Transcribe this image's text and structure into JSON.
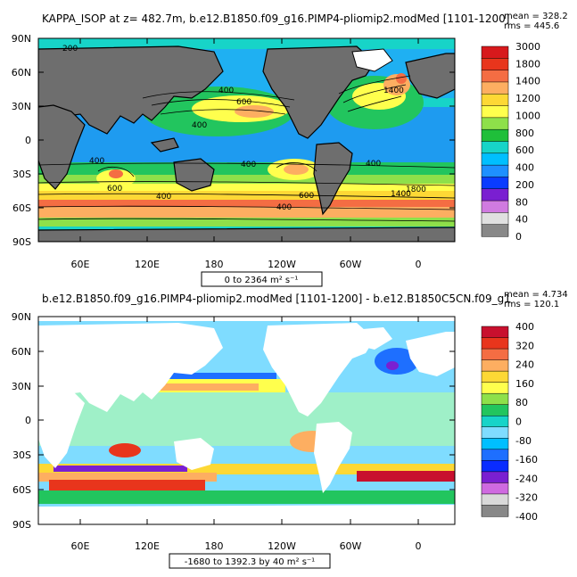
{
  "panels": [
    {
      "id": "top",
      "title": "KAPPA_ISOP at z= 482.7m, b.e12.B1850.f09_g16.PIMP4-pliomip2.modMed [1101-1200]",
      "stats": {
        "mean": "mean = 328.2",
        "rms": "rms = 445.6"
      },
      "range_label": "0 to 2364 m² s⁻¹",
      "lat_labels": [
        "90N",
        "60N",
        "30N",
        "0",
        "30S",
        "60S",
        "90S"
      ],
      "lon_labels": [
        "60E",
        "120E",
        "180",
        "120W",
        "60W",
        "0"
      ],
      "contour_labels": [
        "400",
        "400",
        "600",
        "400",
        "400",
        "400",
        "600",
        "400",
        "600",
        "400",
        "1400",
        "1400",
        "1800",
        "200"
      ],
      "colorbar": {
        "labels": [
          "3000",
          "1800",
          "1400",
          "1200",
          "1000",
          "800",
          "600",
          "400",
          "200",
          "80",
          "40",
          "0"
        ],
        "colors": [
          "#d7191c",
          "#e8351c",
          "#f46d43",
          "#fdae61",
          "#fdd835",
          "#ffff4d",
          "#8ee04a",
          "#1fbf3a",
          "#17d4c8",
          "#00bfff",
          "#1e90ff",
          "#0a3cff",
          "#7a1fd1",
          "#d07be0",
          "#e0e0e0",
          "#888888"
        ]
      }
    },
    {
      "id": "bottom",
      "title": "b.e12.B1850.f09_g16.PIMP4-pliomip2.modMed [1101-1200] - b.e12.B1850C5CN.f09_g1",
      "stats": {
        "mean": "mean = 4.734",
        "rms": "rms = 120.1"
      },
      "range_label": "-1680 to 1392.3 by 40 m² s⁻¹",
      "lat_labels": [
        "90N",
        "60N",
        "30N",
        "0",
        "30S",
        "60S",
        "90S"
      ],
      "lon_labels": [
        "60E",
        "120E",
        "180",
        "120W",
        "60W",
        "0"
      ],
      "colorbar": {
        "labels": [
          "400",
          "320",
          "240",
          "160",
          "80",
          "0",
          "-80",
          "-160",
          "-240",
          "-320",
          "-400"
        ],
        "colors": [
          "#c8102e",
          "#e8351c",
          "#f46d43",
          "#fdae61",
          "#fdd835",
          "#ffff4d",
          "#8ee04a",
          "#22c55e",
          "#17d4c8",
          "#7fdcff",
          "#00bfff",
          "#1e6fff",
          "#0a2cff",
          "#7a1fd1",
          "#cf6ae0",
          "#d9d9d9",
          "#888888"
        ]
      }
    }
  ]
}
